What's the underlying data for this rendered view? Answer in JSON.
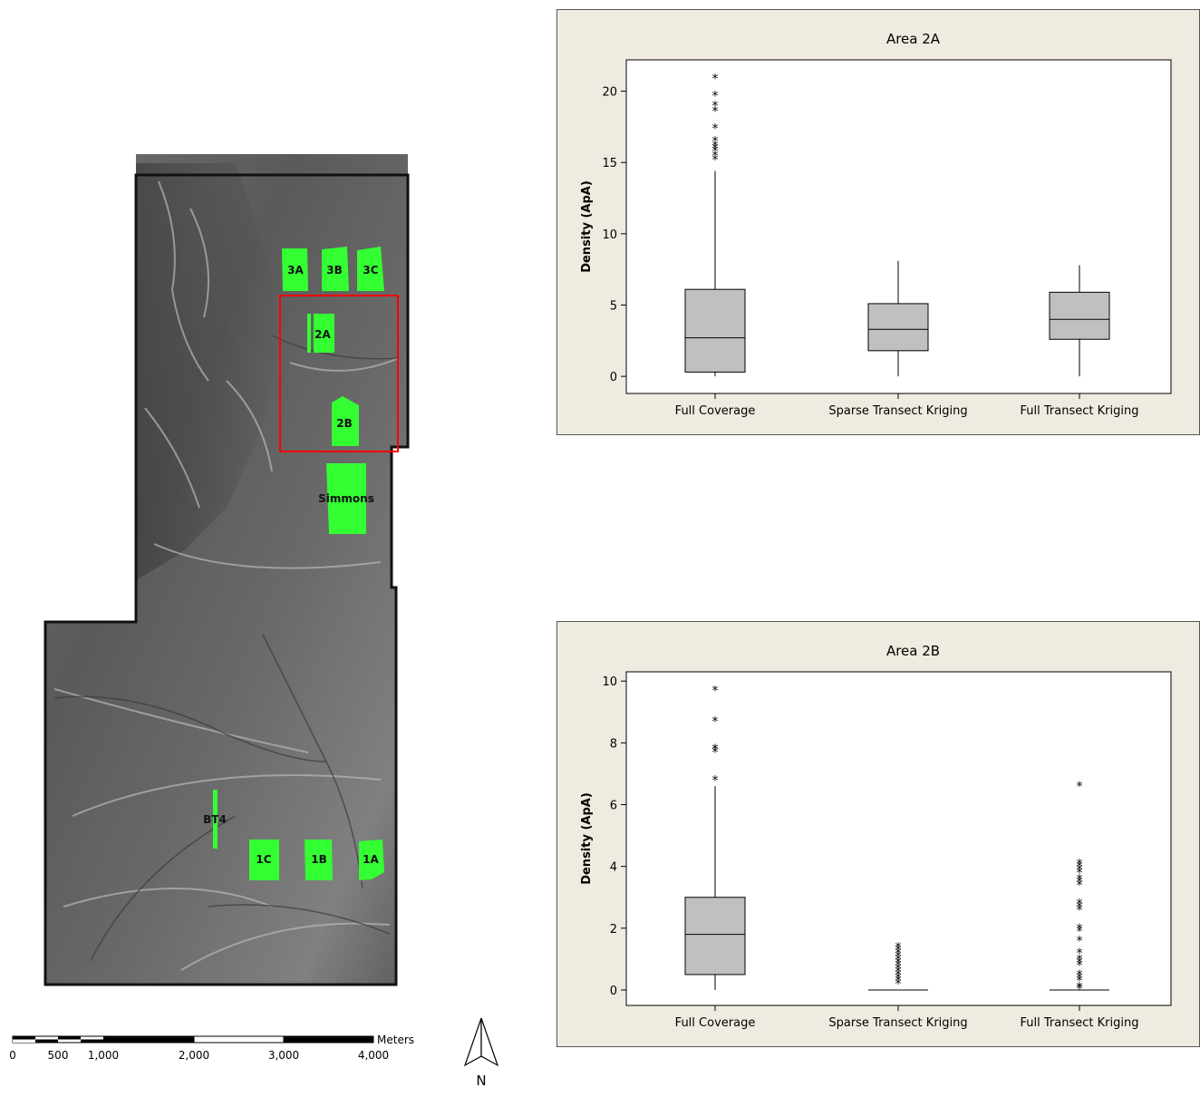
{
  "map": {
    "areas": [
      {
        "label": "3A"
      },
      {
        "label": "3B"
      },
      {
        "label": "3C"
      },
      {
        "label": "2A"
      },
      {
        "label": "2B"
      },
      {
        "label": "Simmons"
      },
      {
        "label": "BT4"
      },
      {
        "label": "1C"
      },
      {
        "label": "1B"
      },
      {
        "label": "1A"
      }
    ],
    "scale_bar": {
      "unit": "Meters",
      "ticks": [
        "0",
        "500",
        "1,000",
        "2,000",
        "3,000",
        "4,000"
      ]
    },
    "north_label": "N",
    "colors": {
      "area_fill": "#33ff33",
      "highlight_box": "#ff0000"
    }
  },
  "chart_data": [
    {
      "type": "box",
      "title": "Area 2A",
      "xlabel": "",
      "ylabel": "Density (ApA)",
      "ylim": [
        -1.2,
        22.2
      ],
      "yticks": [
        0,
        5,
        10,
        15,
        20
      ],
      "categories": [
        "Full Coverage",
        "Sparse Transect Kriging",
        "Full Transect Kriging"
      ],
      "boxes": [
        {
          "min": 0,
          "q1": 0.3,
          "median": 2.7,
          "q3": 6.1,
          "whisker_high": 14.4,
          "outliers": [
            15.2,
            15.5,
            15.8,
            16.0,
            16.2,
            16.5,
            17.4,
            18.6,
            19.0,
            19.7,
            20.9
          ]
        },
        {
          "min": 0,
          "q1": 1.8,
          "median": 3.3,
          "q3": 5.1,
          "whisker_high": 8.1,
          "outliers": []
        },
        {
          "min": 0,
          "q1": 2.6,
          "median": 4.0,
          "q3": 5.9,
          "whisker_high": 7.8,
          "outliers": []
        }
      ],
      "colors": {
        "box_fill": "#c0c0c0",
        "panel_bg": "#efebe0"
      }
    },
    {
      "type": "box",
      "title": "Area 2B",
      "xlabel": "",
      "ylabel": "Density (ApA)",
      "ylim": [
        -0.5,
        10.3
      ],
      "yticks": [
        0,
        2,
        4,
        6,
        8,
        10
      ],
      "categories": [
        "Full Coverage",
        "Sparse Transect Kriging",
        "Full Transect Kriging"
      ],
      "boxes": [
        {
          "min": 0,
          "q1": 0.5,
          "median": 1.8,
          "q3": 3.0,
          "whisker_high": 6.6,
          "outliers": [
            6.8,
            7.7,
            7.8,
            7.8,
            8.7,
            9.7
          ]
        },
        {
          "min": 0,
          "q1": 0,
          "median": 0,
          "q3": 0,
          "whisker_high": 0,
          "outliers": [
            0.2,
            0.3,
            0.4,
            0.5,
            0.6,
            0.7,
            0.8,
            0.9,
            1.0,
            1.1,
            1.2,
            1.3,
            1.4
          ]
        },
        {
          "min": 0,
          "q1": 0,
          "median": 0,
          "q3": 0,
          "whisker_high": 0,
          "outliers": [
            0.05,
            0.1,
            0.3,
            0.4,
            0.5,
            0.8,
            0.9,
            1.0,
            1.2,
            1.6,
            1.9,
            2.0,
            2.6,
            2.7,
            2.8,
            3.4,
            3.5,
            3.6,
            3.8,
            3.9,
            4.0,
            4.1,
            6.6
          ]
        }
      ],
      "colors": {
        "box_fill": "#c0c0c0",
        "panel_bg": "#efebe0"
      }
    }
  ]
}
